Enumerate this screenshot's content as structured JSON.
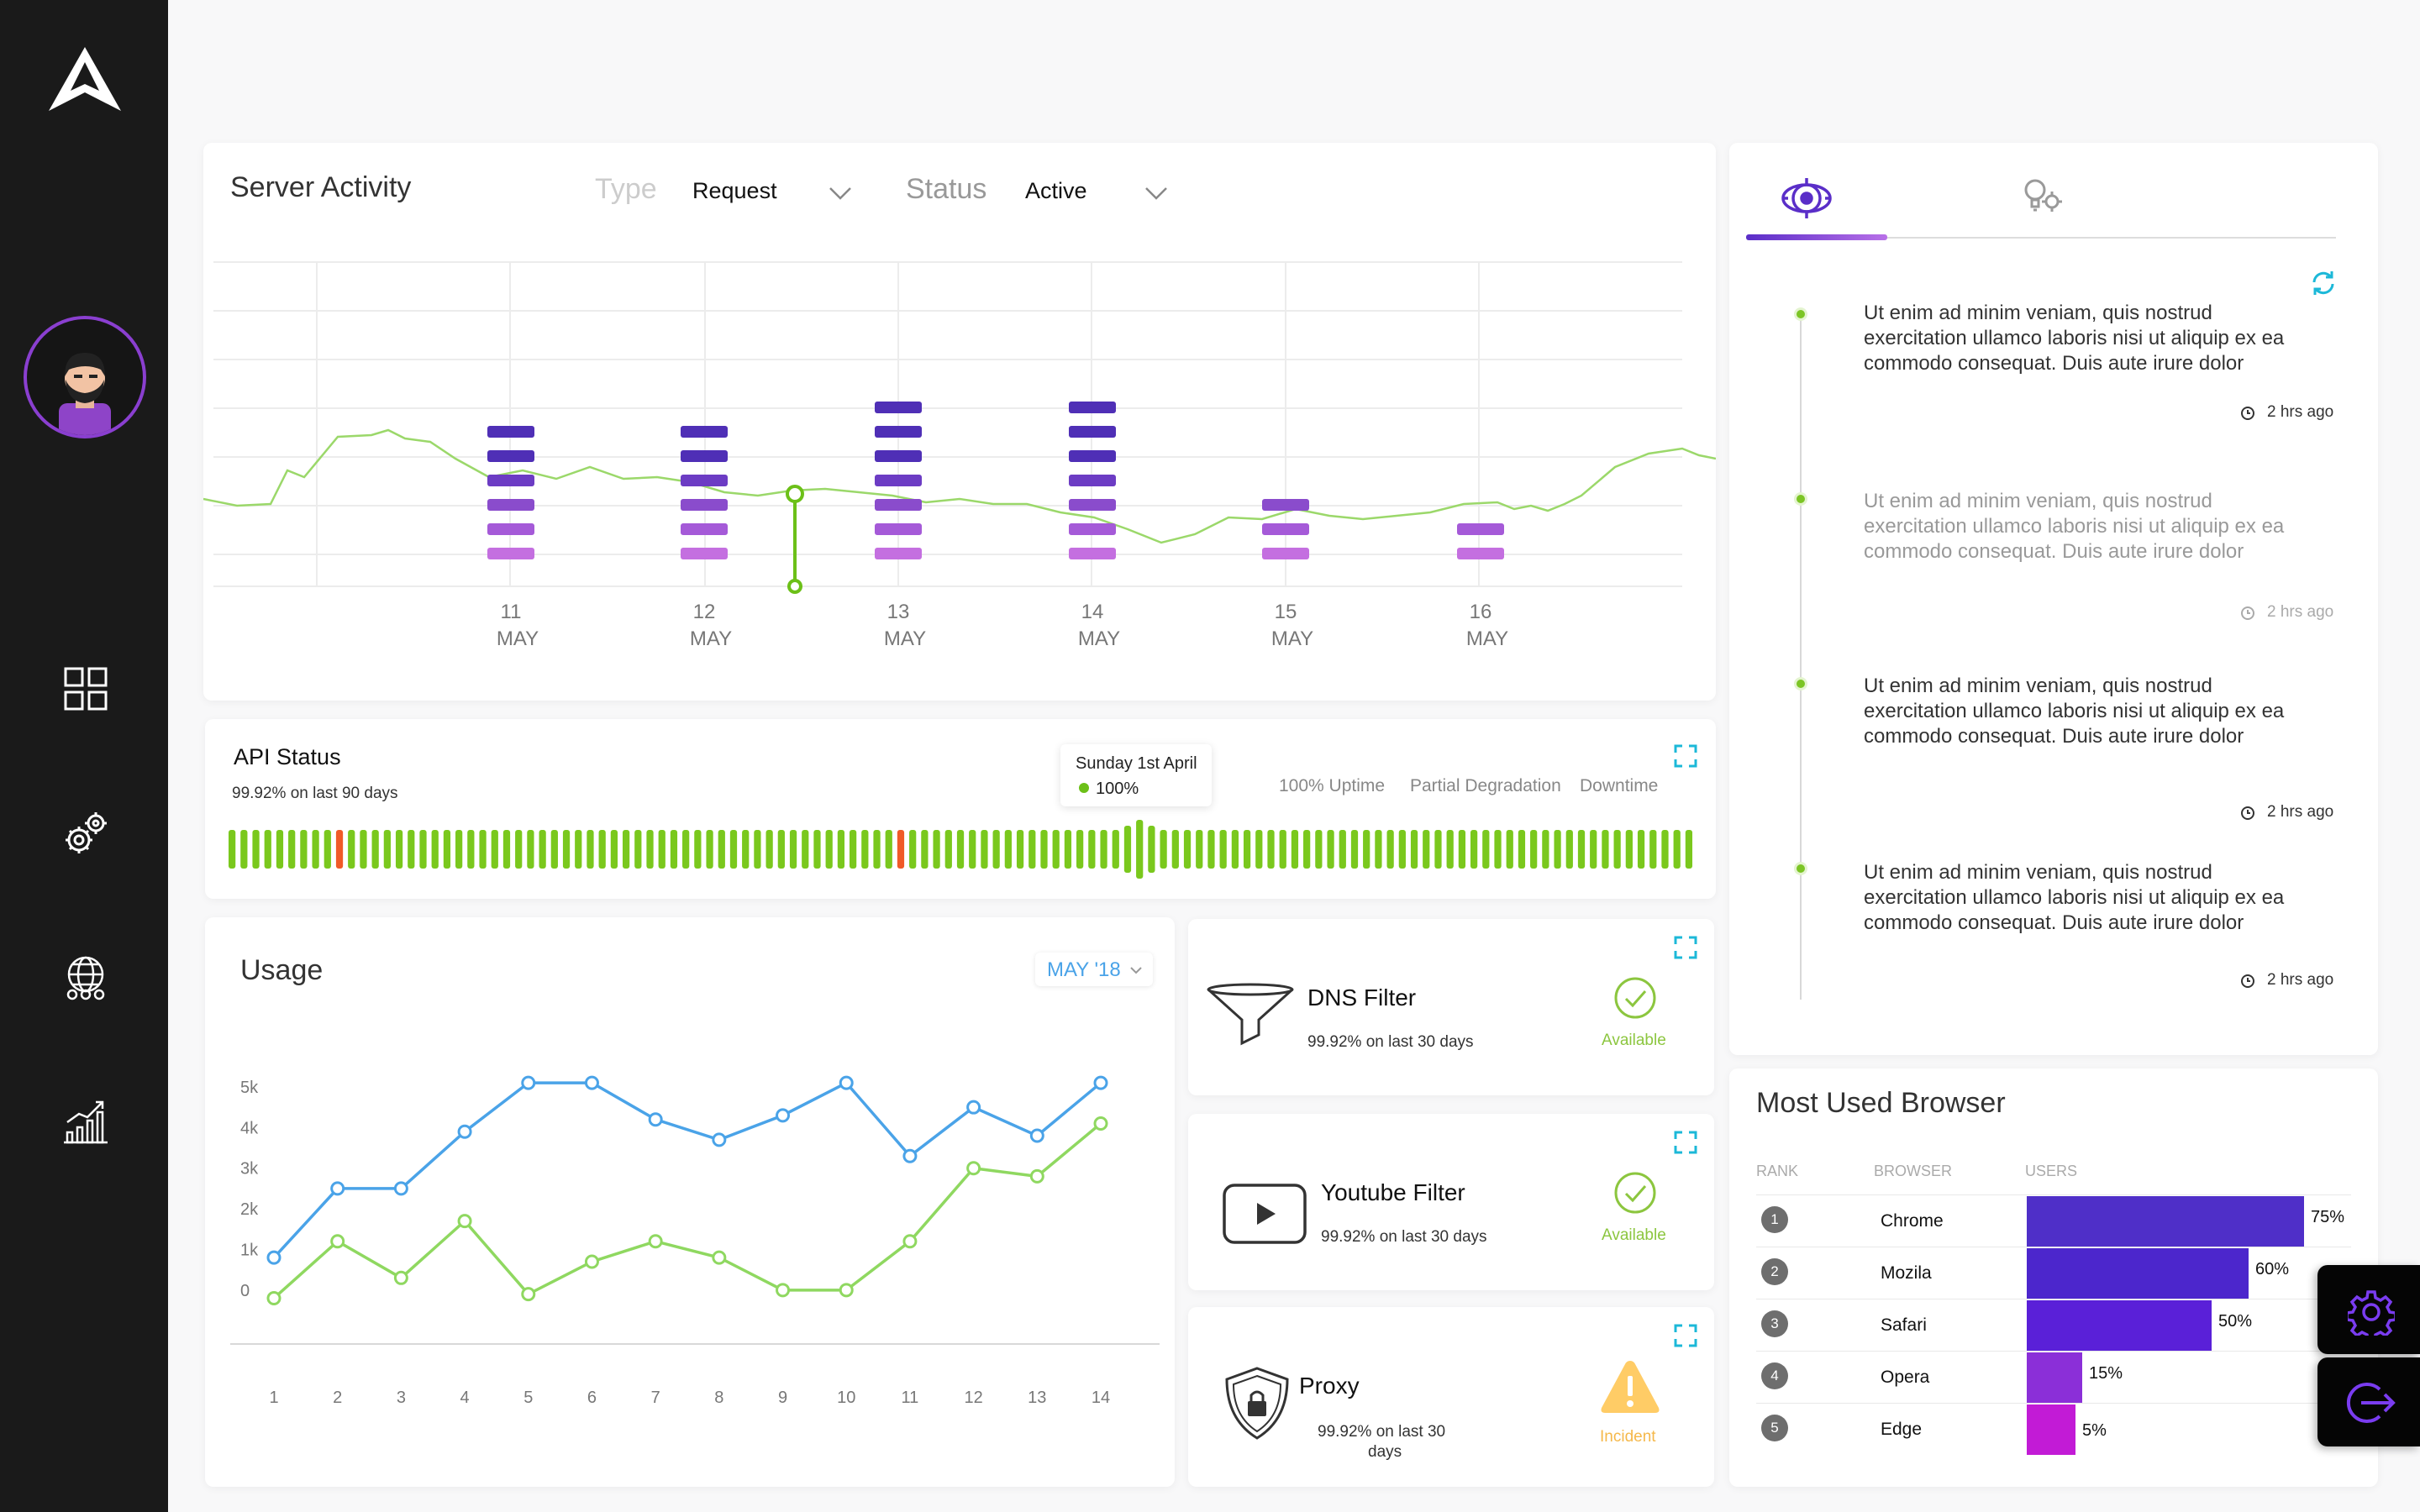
{
  "server_activity": {
    "title": "Server Activity",
    "type_label": "Type",
    "type_value": "Request",
    "status_label": "Status",
    "status_value": "Active",
    "chart_data": {
      "type": "bar",
      "categories": [
        "11 MAY",
        "12 MAY",
        "13 MAY",
        "14 MAY",
        "15 MAY",
        "16 MAY"
      ],
      "days": [
        "11",
        "12",
        "13",
        "14",
        "15",
        "16"
      ],
      "month": "MAY",
      "stacked_segments": [
        6,
        6,
        7,
        7,
        3,
        2
      ],
      "colors": [
        "#c46fe0",
        "#a55ad8",
        "#8a4ccc",
        "#6c3cc4",
        "#4f2fb6"
      ],
      "line_color": "#9bd86a"
    }
  },
  "api_status": {
    "title": "API Status",
    "subtitle": "99.92% on last 90 days",
    "tooltip_date": "Sunday 1st April",
    "tooltip_value": "100%",
    "legend": [
      "100% Uptime",
      "Partial Degradation",
      "Downtime"
    ],
    "chart_data": {
      "type": "bar",
      "bar_count": 123,
      "downtime_indices": [
        9,
        56
      ],
      "highlight_index": 76,
      "up_color": "#7ac81d",
      "down_color": "#f05a28"
    }
  },
  "usage": {
    "title": "Usage",
    "month": "MAY '18",
    "chart_data": {
      "type": "line",
      "x": [
        1,
        2,
        3,
        4,
        5,
        6,
        7,
        8,
        9,
        10,
        11,
        12,
        13,
        14
      ],
      "yticks": [
        "5k",
        "4k",
        "3k",
        "2k",
        "1k",
        "0"
      ],
      "ylim": [
        -500,
        5000
      ],
      "series": [
        {
          "values": [
            800,
            2500,
            2500,
            3900,
            5100,
            5100,
            4200,
            3700,
            4300,
            5100,
            3300,
            4500,
            3800,
            5100
          ],
          "color": "#4aa3e8"
        },
        {
          "values": [
            -200,
            1200,
            300,
            1700,
            -100,
            700,
            1200,
            800,
            0,
            0,
            1200,
            3000,
            2800,
            4100
          ],
          "color": "#8fd860"
        }
      ]
    }
  },
  "filters": [
    {
      "title": "DNS Filter",
      "subtitle": "99.92% on last 30 days",
      "status": "Available"
    },
    {
      "title": "Youtube Filter",
      "subtitle": "99.92% on last 30 days",
      "status": "Available"
    },
    {
      "title": "Proxy",
      "subtitle_line1": "99.92% on last 30",
      "subtitle_line2": "days",
      "status": "Incident"
    }
  ],
  "activity": {
    "items": [
      {
        "text": "Ut enim ad minim veniam, quis nostrud exercitation ullamco laboris nisi ut aliquip ex ea commodo consequat. Duis aute irure dolor",
        "time": "2 hrs ago"
      },
      {
        "text": "Ut enim ad minim veniam, quis nostrud exercitation ullamco laboris nisi ut aliquip ex ea commodo consequat. Duis aute irure dolor",
        "time": "2 hrs ago"
      },
      {
        "text": "Ut enim ad minim veniam, quis nostrud exercitation ullamco laboris nisi ut aliquip ex ea commodo consequat. Duis aute irure dolor",
        "time": "2 hrs ago"
      },
      {
        "text": "Ut enim ad minim veniam, quis nostrud exercitation ullamco laboris nisi ut aliquip ex ea commodo consequat. Duis aute irure dolor",
        "time": "2 hrs ago"
      }
    ]
  },
  "browsers": {
    "title": "Most Used Browser",
    "headers": [
      "RANK",
      "BROWSER",
      "USERS"
    ],
    "rows": [
      {
        "rank": "1",
        "name": "Chrome",
        "pct": "75%",
        "value": 75,
        "color": "#4f2fc8"
      },
      {
        "rank": "2",
        "name": "Mozila",
        "pct": "60%",
        "value": 60,
        "color": "#4c26cc"
      },
      {
        "rank": "3",
        "name": "Safari",
        "pct": "50%",
        "value": 50,
        "color": "#5a20d8"
      },
      {
        "rank": "4",
        "name": "Opera",
        "pct": "15%",
        "value": 15,
        "color": "#8b2fd8"
      },
      {
        "rank": "5",
        "name": "Edge",
        "pct": "5%",
        "value": 5,
        "color": "#c21bd6"
      }
    ]
  }
}
